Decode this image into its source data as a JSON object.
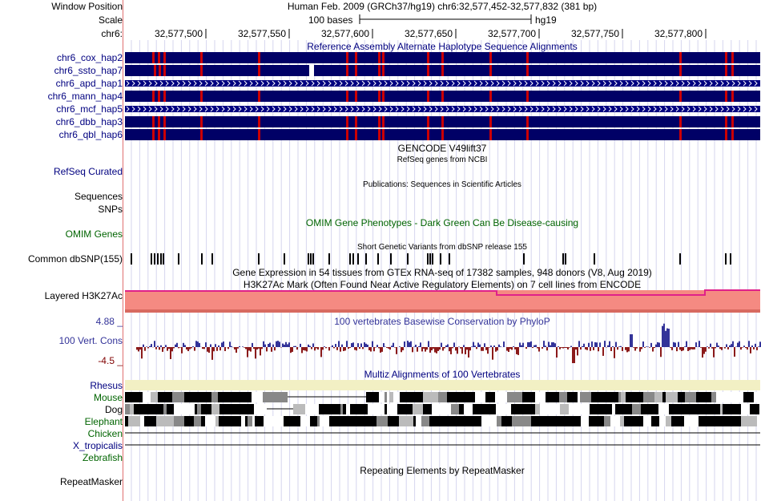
{
  "header": {
    "window_position_label": "Window Position",
    "scale_label": "Scale",
    "chrom_label": "chr6:",
    "window_position_text": "Human Feb. 2009 (GRCh37/hg19)   chr6:32,577,452-32,577,832 (381 bp)",
    "scale_bar_text": "100 bases",
    "assembly": "hg19",
    "ruler_positions": [
      "32,577,500",
      "32,577,550",
      "32,577,600",
      "32,577,650",
      "32,577,700",
      "32,577,750",
      "32,577,800"
    ]
  },
  "tracks": {
    "alt_haplotypes": {
      "title": "Reference Assembly Alternate Haplotype Sequence Alignments",
      "rows": [
        {
          "name": "chr6_cox_hap2",
          "style": "solid"
        },
        {
          "name": "chr6_ssto_hap7",
          "style": "solid"
        },
        {
          "name": "chr6_apd_hap1",
          "style": "chevron"
        },
        {
          "name": "chr6_mann_hap4",
          "style": "solid"
        },
        {
          "name": "chr6_mcf_hap5",
          "style": "chevron"
        },
        {
          "name": "chr6_dbb_hap3",
          "style": "solid"
        },
        {
          "name": "chr6_qbl_hap6",
          "style": "solid"
        }
      ]
    },
    "gencode": {
      "title": "GENCODE V49lift37"
    },
    "refseq": {
      "label": "RefSeq Curated",
      "title": "RefSeq genes from NCBI"
    },
    "publications": {
      "title": "Publications: Sequences in Scientific Articles",
      "label": "Sequences"
    },
    "snps_label": "SNPs",
    "omim": {
      "title": "OMIM Gene Phenotypes - Dark Green Can Be Disease-causing",
      "label": "OMIM Genes"
    },
    "dbsnp": {
      "title": "Short Genetic Variants from dbSNP release 155",
      "label": "Common dbSNP(155)"
    },
    "gtex": {
      "title": "Gene Expression in 54 tissues from GTEx RNA-seq of 17382 samples, 948 donors (V8, Aug 2019)"
    },
    "h3k27ac": {
      "title": "H3K27Ac Mark (Often Found Near Active Regulatory Elements) on 7 cell lines from ENCODE",
      "label": "Layered H3K27Ac"
    },
    "phylop": {
      "title": "100 vertebrates Basewise Conservation by PhyloP",
      "label": "100 Vert. Cons",
      "max_label": "4.88 _",
      "min_label": "-4.5 _"
    },
    "multiz": {
      "title": "Multiz Alignments of 100 Vertebrates",
      "species": [
        "Rhesus",
        "Mouse",
        "Dog",
        "Elephant",
        "Chicken",
        "X_tropicalis",
        "Zebrafish"
      ]
    },
    "repeatmasker": {
      "title": "Repeating Elements by RepeatMasker",
      "label": "RepeatMasker"
    }
  },
  "colors": {
    "navy": "#000080",
    "haplotype_fill": "#000066",
    "mismatch": "#cc0000",
    "h3k27ac_fill": "#f58a82",
    "phylop_pos": "#333399",
    "phylop_neg": "#8b1a1a",
    "rhesus": "#f2f0c4",
    "grid": "#d6d6ee"
  }
}
